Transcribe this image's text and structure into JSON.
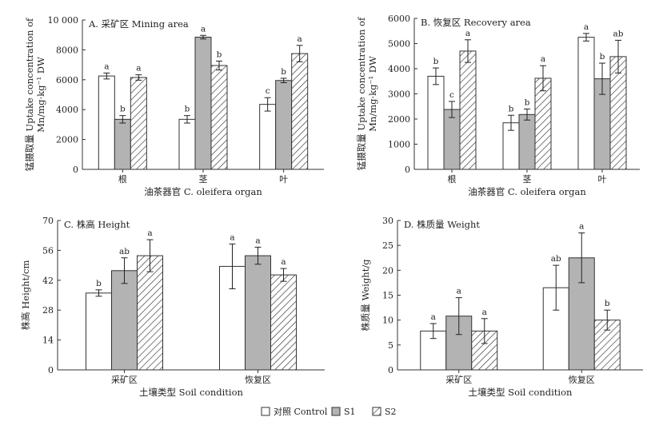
{
  "chart_data": [
    {
      "id": "A",
      "type": "bar",
      "title": "A. 采矿区 Mining area",
      "ylabel_line1": "锰摄取量 Uptake concentration of",
      "ylabel_line2": "Mn/mg·kg⁻¹ DW",
      "xlabel": "油茶器官 C. oleifera organ",
      "categories": [
        "根",
        "茎",
        "叶"
      ],
      "ylim": [
        0,
        10000
      ],
      "yticks": [
        0,
        2000,
        4000,
        6000,
        8000,
        10000
      ],
      "ytick_labels": [
        "0",
        "2000",
        "4000",
        "6000",
        "8000",
        "10 000"
      ],
      "series": [
        {
          "name": "对照 Control",
          "values": [
            6250,
            3350,
            4350
          ],
          "errors": [
            200,
            250,
            450
          ],
          "letters": [
            "a",
            "b",
            "c"
          ]
        },
        {
          "name": "S1",
          "values": [
            3350,
            8850,
            5950
          ],
          "errors": [
            250,
            120,
            150
          ],
          "letters": [
            "b",
            "a",
            "b"
          ]
        },
        {
          "name": "S2",
          "values": [
            6150,
            6950,
            7750
          ],
          "errors": [
            180,
            300,
            550
          ],
          "letters": [
            "a",
            "b",
            "a"
          ]
        }
      ]
    },
    {
      "id": "B",
      "type": "bar",
      "title": "B. 恢复区 Recovery area",
      "ylabel_line1": "锰摄取量 Uptake concentration of",
      "ylabel_line2": "Mn/mg·kg⁻¹ DW",
      "xlabel": "油茶器官 C. oleifera organ",
      "categories": [
        "根",
        "茎",
        "叶"
      ],
      "ylim": [
        0,
        6000
      ],
      "yticks": [
        0,
        1000,
        2000,
        3000,
        4000,
        5000,
        6000
      ],
      "ytick_labels": [
        "0",
        "1000",
        "2000",
        "3000",
        "4000",
        "5000",
        "6000"
      ],
      "series": [
        {
          "name": "对照 Control",
          "values": [
            3700,
            1850,
            5250
          ],
          "errors": [
            330,
            300,
            150
          ],
          "letters": [
            "b",
            "b",
            "a"
          ]
        },
        {
          "name": "S1",
          "values": [
            2380,
            2180,
            3600
          ],
          "errors": [
            320,
            220,
            620
          ],
          "letters": [
            "c",
            "b",
            "b"
          ]
        },
        {
          "name": "S2",
          "values": [
            4700,
            3620,
            4480
          ],
          "errors": [
            450,
            500,
            650
          ],
          "letters": [
            "a",
            "a",
            "ab"
          ]
        }
      ]
    },
    {
      "id": "C",
      "type": "bar",
      "title": "C. 株高 Height",
      "ylabel": "株高 Height/cm",
      "xlabel": "土壤类型 Soil condition",
      "categories": [
        "采矿区",
        "恢复区"
      ],
      "ylim": [
        0,
        70
      ],
      "yticks": [
        0,
        14,
        28,
        42,
        56,
        70
      ],
      "ytick_labels": [
        "0",
        "14",
        "28",
        "42",
        "56",
        "70"
      ],
      "series": [
        {
          "name": "对照 Control",
          "values": [
            36,
            48.5
          ],
          "errors": [
            1.5,
            10.5
          ],
          "letters": [
            "b",
            "a"
          ]
        },
        {
          "name": "S1",
          "values": [
            46.5,
            53.5
          ],
          "errors": [
            6,
            4
          ],
          "letters": [
            "ab",
            "a"
          ]
        },
        {
          "name": "S2",
          "values": [
            53.5,
            44.5
          ],
          "errors": [
            7.5,
            3
          ],
          "letters": [
            "a",
            "a"
          ]
        }
      ]
    },
    {
      "id": "D",
      "type": "bar",
      "title": "D. 株质量 Weight",
      "ylabel": "株质量 Weight/g",
      "xlabel": "土壤类型 Soil condition",
      "categories": [
        "采矿区",
        "恢复区"
      ],
      "ylim": [
        0,
        30
      ],
      "yticks": [
        0,
        5,
        10,
        15,
        20,
        25,
        30
      ],
      "ytick_labels": [
        "0",
        "5",
        "10",
        "15",
        "20",
        "25",
        "30"
      ],
      "series": [
        {
          "name": "对照 Control",
          "values": [
            7.8,
            16.5
          ],
          "errors": [
            1.5,
            4.5
          ],
          "letters": [
            "a",
            "ab"
          ]
        },
        {
          "name": "S1",
          "values": [
            10.8,
            22.5
          ],
          "errors": [
            3.7,
            5
          ],
          "letters": [
            "a",
            "a"
          ]
        },
        {
          "name": "S2",
          "values": [
            7.8,
            10
          ],
          "errors": [
            2.5,
            2
          ],
          "letters": [
            "a",
            "b"
          ]
        }
      ]
    }
  ],
  "legend": [
    {
      "label": "对照 Control",
      "pattern": "white"
    },
    {
      "label": "S1",
      "pattern": "gray"
    },
    {
      "label": "S2",
      "pattern": "hatch"
    }
  ],
  "colors": {
    "control": "#ffffff",
    "s1": "#b3b3b3",
    "s2_hatch": "#333333",
    "axis": "#333333"
  }
}
